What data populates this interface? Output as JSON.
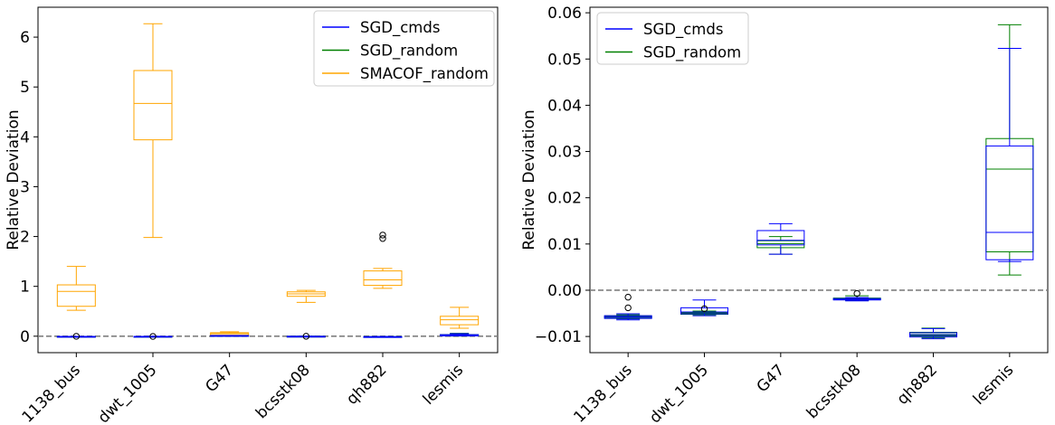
{
  "chart_data": [
    {
      "type": "box",
      "title": "",
      "xlabel": "",
      "ylabel": "Relative Deviation",
      "ylim": [
        -0.33,
        6.6
      ],
      "yticks": [
        0,
        1,
        2,
        3,
        4,
        5,
        6
      ],
      "ytick_labels": [
        "0",
        "1",
        "2",
        "3",
        "4",
        "5",
        "6"
      ],
      "categories": [
        "1138_bus",
        "dwt_1005",
        "G47",
        "bcsstk08",
        "qh882",
        "lesmis"
      ],
      "reference_line": 0,
      "legend_position": "top-right",
      "series": [
        {
          "name": "SGD_cmds",
          "color": "#0000ff",
          "boxes": [
            {
              "whislo": -0.01,
              "q1": -0.007,
              "med": -0.006,
              "q3": -0.005,
              "whishi": -0.004,
              "fliers": [
                -0.002
              ]
            },
            {
              "whislo": -0.006,
              "q1": -0.005,
              "med": -0.005,
              "q3": -0.004,
              "whishi": -0.002,
              "fliers": [
                -0.004
              ]
            },
            {
              "whislo": 0.008,
              "q1": 0.01,
              "med": 0.011,
              "q3": 0.013,
              "whishi": 0.015,
              "fliers": []
            },
            {
              "whislo": -0.003,
              "q1": -0.002,
              "med": -0.002,
              "q3": -0.002,
              "whishi": -0.001,
              "fliers": [
                -0.001
              ]
            },
            {
              "whislo": -0.011,
              "q1": -0.01,
              "med": -0.01,
              "q3": -0.009,
              "whishi": -0.008,
              "fliers": []
            },
            {
              "whislo": 0.006,
              "q1": 0.007,
              "med": 0.013,
              "q3": 0.031,
              "whishi": 0.052,
              "fliers": []
            }
          ]
        },
        {
          "name": "SGD_random",
          "color": "#008000",
          "boxes": [
            {
              "whislo": -0.01,
              "q1": -0.007,
              "med": -0.006,
              "q3": -0.005,
              "whishi": -0.004,
              "fliers": []
            },
            {
              "whislo": -0.006,
              "q1": -0.005,
              "med": -0.005,
              "q3": -0.005,
              "whishi": -0.004,
              "fliers": []
            },
            {
              "whislo": 0.008,
              "q1": 0.009,
              "med": 0.01,
              "q3": 0.011,
              "whishi": 0.012,
              "fliers": []
            },
            {
              "whislo": -0.003,
              "q1": -0.002,
              "med": -0.002,
              "q3": -0.002,
              "whishi": -0.001,
              "fliers": []
            },
            {
              "whislo": -0.011,
              "q1": -0.01,
              "med": -0.01,
              "q3": -0.009,
              "whishi": -0.008,
              "fliers": []
            },
            {
              "whislo": 0.003,
              "q1": 0.008,
              "med": 0.026,
              "q3": 0.033,
              "whishi": 0.057,
              "fliers": []
            }
          ]
        },
        {
          "name": "SMACOF_random",
          "color": "#ffa500",
          "boxes": [
            {
              "whislo": 0.52,
              "q1": 0.6,
              "med": 0.9,
              "q3": 1.03,
              "whishi": 1.4,
              "fliers": []
            },
            {
              "whislo": 1.98,
              "q1": 3.94,
              "med": 4.67,
              "q3": 5.33,
              "whishi": 6.27,
              "fliers": []
            },
            {
              "whislo": 0.01,
              "q1": 0.02,
              "med": 0.05,
              "q3": 0.07,
              "whishi": 0.09,
              "fliers": []
            },
            {
              "whislo": 0.68,
              "q1": 0.8,
              "med": 0.85,
              "q3": 0.89,
              "whishi": 0.92,
              "fliers": []
            },
            {
              "whislo": 0.96,
              "q1": 1.02,
              "med": 1.13,
              "q3": 1.31,
              "whishi": 1.36,
              "fliers": [
                1.96,
                2.03
              ]
            },
            {
              "whislo": 0.16,
              "q1": 0.23,
              "med": 0.33,
              "q3": 0.4,
              "whishi": 0.58,
              "fliers": []
            }
          ]
        }
      ]
    },
    {
      "type": "box",
      "title": "",
      "xlabel": "",
      "ylabel": "Relative Deviation",
      "ylim": [
        -0.0135,
        0.0612
      ],
      "yticks": [
        -0.01,
        0.0,
        0.01,
        0.02,
        0.03,
        0.04,
        0.05,
        0.06
      ],
      "ytick_labels": [
        "−0.01",
        "0.00",
        "0.01",
        "0.02",
        "0.03",
        "0.04",
        "0.05",
        "0.06"
      ],
      "categories": [
        "1138_bus",
        "dwt_1005",
        "G47",
        "bcsstk08",
        "qh882",
        "lesmis"
      ],
      "reference_line": 0,
      "legend_position": "top-left",
      "series": [
        {
          "name": "SGD_cmds",
          "color": "#0000ff",
          "boxes": [
            {
              "whislo": -0.0064,
              "q1": -0.0061,
              "med": -0.0058,
              "q3": -0.0055,
              "whishi": -0.0051,
              "fliers": [
                -0.0038,
                -0.0015
              ]
            },
            {
              "whislo": -0.0055,
              "q1": -0.0051,
              "med": -0.0047,
              "q3": -0.0038,
              "whishi": -0.0021,
              "fliers": [
                -0.004
              ]
            },
            {
              "whislo": 0.0078,
              "q1": 0.0098,
              "med": 0.0108,
              "q3": 0.0129,
              "whishi": 0.0144,
              "fliers": []
            },
            {
              "whislo": -0.0023,
              "q1": -0.0021,
              "med": -0.002,
              "q3": -0.0018,
              "whishi": -0.0016,
              "fliers": [
                -0.0007
              ]
            },
            {
              "whislo": -0.0105,
              "q1": -0.0101,
              "med": -0.0097,
              "q3": -0.0092,
              "whishi": -0.0083,
              "fliers": []
            },
            {
              "whislo": 0.0062,
              "q1": 0.0066,
              "med": 0.0125,
              "q3": 0.0312,
              "whishi": 0.0523,
              "fliers": []
            }
          ]
        },
        {
          "name": "SGD_random",
          "color": "#008000",
          "boxes": [
            {
              "whislo": -0.0062,
              "q1": -0.006,
              "med": -0.0058,
              "q3": -0.0056,
              "whishi": -0.0053,
              "fliers": []
            },
            {
              "whislo": -0.0054,
              "q1": -0.0052,
              "med": -0.005,
              "q3": -0.0048,
              "whishi": -0.0045,
              "fliers": []
            },
            {
              "whislo": 0.0078,
              "q1": 0.0092,
              "med": 0.0101,
              "q3": 0.0107,
              "whishi": 0.0116,
              "fliers": []
            },
            {
              "whislo": -0.0022,
              "q1": -0.002,
              "med": -0.0019,
              "q3": -0.0017,
              "whishi": -0.0012,
              "fliers": []
            },
            {
              "whislo": -0.0103,
              "q1": -0.0099,
              "med": -0.0096,
              "q3": -0.0091,
              "whishi": -0.0082,
              "fliers": []
            },
            {
              "whislo": 0.0033,
              "q1": 0.0083,
              "med": 0.0262,
              "q3": 0.0328,
              "whishi": 0.0574,
              "fliers": []
            }
          ]
        }
      ]
    }
  ]
}
